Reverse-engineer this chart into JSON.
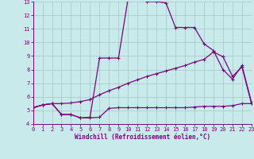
{
  "background_color": "#c8eaea",
  "grid_color": "#b0d8d8",
  "line_color": "#800080",
  "xlabel": "Windchill (Refroidissement éolien,°C)",
  "xlim": [
    0,
    23
  ],
  "ylim": [
    4,
    13
  ],
  "ytick_vals": [
    4,
    5,
    6,
    7,
    8,
    9,
    10,
    11,
    12,
    13
  ],
  "xtick_vals": [
    0,
    1,
    2,
    3,
    4,
    5,
    6,
    7,
    8,
    9,
    10,
    11,
    12,
    13,
    14,
    15,
    16,
    17,
    18,
    19,
    20,
    21,
    22,
    23
  ],
  "line1_x": [
    0,
    1,
    2,
    3,
    4,
    5,
    6,
    7,
    8,
    9,
    10,
    11,
    12,
    13,
    14,
    15,
    16,
    17,
    18,
    19,
    20,
    21,
    22,
    23
  ],
  "line1_y": [
    5.2,
    5.4,
    5.5,
    4.7,
    4.7,
    4.45,
    4.45,
    4.5,
    5.15,
    5.2,
    5.2,
    5.2,
    5.2,
    5.2,
    5.2,
    5.2,
    5.2,
    5.25,
    5.3,
    5.3,
    5.3,
    5.35,
    5.5,
    5.5
  ],
  "line2_x": [
    0,
    1,
    2,
    3,
    4,
    5,
    6,
    7,
    8,
    9,
    10,
    11,
    12,
    13,
    14,
    15,
    16,
    17,
    18,
    19,
    20,
    21,
    22,
    23
  ],
  "line2_y": [
    5.2,
    5.4,
    5.5,
    5.5,
    5.55,
    5.65,
    5.8,
    6.15,
    6.45,
    6.7,
    7.0,
    7.25,
    7.5,
    7.7,
    7.9,
    8.1,
    8.3,
    8.55,
    8.75,
    9.3,
    8.95,
    7.5,
    8.2,
    5.5
  ],
  "line3_x": [
    0,
    1,
    2,
    3,
    4,
    5,
    6,
    7,
    8,
    9,
    10,
    11,
    12,
    13,
    14,
    15,
    16,
    17,
    18,
    19,
    20,
    21,
    22,
    23
  ],
  "line3_y": [
    5.2,
    5.4,
    5.5,
    4.7,
    4.7,
    4.45,
    4.5,
    8.85,
    8.85,
    8.85,
    13.2,
    13.4,
    13.0,
    13.0,
    12.9,
    11.1,
    11.1,
    11.1,
    9.9,
    9.4,
    8.0,
    7.3,
    8.3,
    5.6
  ],
  "linewidth": 0.9,
  "markersize": 2.2,
  "marker": "+"
}
